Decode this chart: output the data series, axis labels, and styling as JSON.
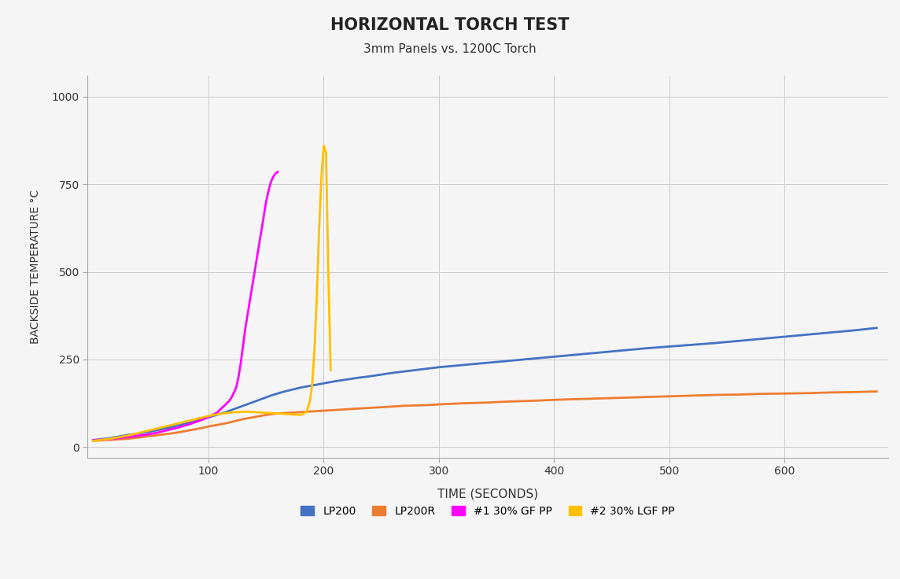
{
  "title": "HORIZONTAL TORCH TEST",
  "subtitle": "3mm Panels vs. 1200C Torch",
  "xlabel": "TIME (SECONDS)",
  "ylabel": "BACKSIDE TEMPERATURE °C",
  "xlim": [
    -5,
    690
  ],
  "ylim": [
    -30,
    1060
  ],
  "yticks": [
    0,
    250,
    500,
    750,
    1000
  ],
  "xticks": [
    100,
    200,
    300,
    400,
    500,
    600
  ],
  "background_color": "#f5f5f5",
  "grid_color": "#cccccc",
  "series": {
    "LP200": {
      "color": "#4472c4",
      "linewidth": 2.0,
      "x": [
        0,
        5,
        10,
        15,
        20,
        25,
        30,
        35,
        40,
        45,
        50,
        55,
        60,
        65,
        70,
        75,
        80,
        85,
        90,
        95,
        100,
        105,
        110,
        115,
        120,
        125,
        130,
        135,
        140,
        145,
        150,
        155,
        160,
        165,
        170,
        175,
        180,
        185,
        190,
        195,
        200,
        210,
        220,
        230,
        240,
        250,
        260,
        270,
        280,
        290,
        300,
        320,
        340,
        360,
        380,
        400,
        420,
        440,
        460,
        480,
        500,
        520,
        540,
        560,
        580,
        600,
        620,
        640,
        660,
        680
      ],
      "y": [
        20,
        22,
        24,
        26,
        29,
        32,
        35,
        37,
        39,
        42,
        45,
        48,
        52,
        55,
        59,
        63,
        67,
        71,
        75,
        80,
        85,
        90,
        95,
        100,
        106,
        112,
        118,
        124,
        130,
        136,
        142,
        148,
        153,
        158,
        162,
        166,
        170,
        173,
        176,
        179,
        182,
        188,
        193,
        198,
        202,
        207,
        212,
        216,
        220,
        224,
        228,
        234,
        240,
        246,
        252,
        258,
        264,
        270,
        276,
        282,
        287,
        292,
        297,
        303,
        309,
        315,
        321,
        327,
        333,
        340
      ]
    },
    "LP200R": {
      "color": "#ed7d31",
      "linewidth": 2.0,
      "x": [
        0,
        5,
        10,
        15,
        20,
        25,
        30,
        35,
        40,
        45,
        50,
        55,
        60,
        65,
        70,
        75,
        80,
        85,
        90,
        95,
        100,
        105,
        110,
        115,
        120,
        125,
        130,
        135,
        140,
        145,
        150,
        155,
        160,
        165,
        170,
        175,
        180,
        185,
        190,
        195,
        200,
        210,
        220,
        230,
        240,
        250,
        260,
        270,
        280,
        290,
        300,
        320,
        340,
        360,
        380,
        400,
        420,
        440,
        460,
        480,
        500,
        520,
        540,
        560,
        580,
        600,
        620,
        640,
        660,
        680
      ],
      "y": [
        18,
        19,
        20,
        21,
        22,
        23,
        24,
        26,
        28,
        30,
        32,
        34,
        36,
        38,
        40,
        43,
        46,
        49,
        52,
        55,
        59,
        62,
        65,
        68,
        72,
        76,
        80,
        83,
        86,
        89,
        92,
        94,
        96,
        97,
        98,
        99,
        100,
        101,
        102,
        103,
        104,
        106,
        108,
        110,
        112,
        114,
        116,
        118,
        119,
        120,
        122,
        125,
        127,
        130,
        132,
        135,
        137,
        139,
        141,
        143,
        145,
        147,
        149,
        150,
        152,
        153,
        154,
        156,
        157,
        159
      ]
    },
    "GF_PP": {
      "color": "#ff00ff",
      "linewidth": 2.0,
      "x": [
        0,
        5,
        10,
        15,
        20,
        25,
        30,
        35,
        40,
        45,
        50,
        55,
        60,
        65,
        70,
        75,
        80,
        85,
        90,
        95,
        100,
        105,
        108,
        110,
        112,
        114,
        116,
        118,
        120,
        122,
        124,
        126,
        128,
        130,
        132,
        134,
        136,
        138,
        140,
        142,
        144,
        146,
        148,
        150,
        152,
        154,
        156,
        158,
        160
      ],
      "y": [
        20,
        21,
        22,
        23,
        25,
        27,
        29,
        31,
        33,
        35,
        38,
        41,
        45,
        49,
        53,
        57,
        62,
        67,
        73,
        79,
        86,
        94,
        100,
        107,
        113,
        119,
        126,
        132,
        142,
        155,
        170,
        200,
        240,
        290,
        340,
        380,
        420,
        460,
        500,
        540,
        580,
        620,
        660,
        700,
        730,
        755,
        770,
        780,
        785
      ]
    },
    "LGF_PP": {
      "color": "#ffc000",
      "linewidth": 2.0,
      "x": [
        0,
        5,
        10,
        15,
        20,
        25,
        30,
        35,
        40,
        45,
        50,
        55,
        60,
        65,
        70,
        75,
        80,
        85,
        90,
        95,
        100,
        105,
        110,
        115,
        120,
        125,
        130,
        135,
        140,
        145,
        150,
        155,
        160,
        165,
        170,
        175,
        180,
        185,
        188,
        190,
        192,
        194,
        196,
        198,
        200,
        202,
        204,
        206
      ],
      "y": [
        18,
        20,
        22,
        24,
        27,
        30,
        33,
        37,
        41,
        45,
        49,
        53,
        57,
        61,
        65,
        69,
        73,
        77,
        81,
        85,
        89,
        92,
        95,
        97,
        99,
        100,
        101,
        101,
        100,
        99,
        98,
        97,
        96,
        95,
        94,
        93,
        92,
        100,
        130,
        180,
        280,
        430,
        620,
        770,
        860,
        840,
        500,
        220
      ]
    }
  },
  "legend": {
    "labels": [
      "LP200",
      "LP200R",
      "#1 30% GF PP",
      "#2 30% LGF PP"
    ],
    "colors": [
      "#4472c4",
      "#ed7d31",
      "#ff00ff",
      "#ffc000"
    ],
    "ncol": 4
  }
}
